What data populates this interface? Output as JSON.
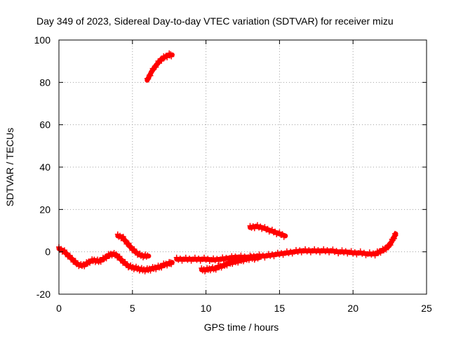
{
  "chart_data": {
    "type": "scatter",
    "title": "Day 349 of 2023, Sidereal Day-to-day VTEC variation (SDTVAR) for receiver mizu",
    "xlabel": "GPS time / hours",
    "ylabel": "SDTVAR / TECUs",
    "xlim": [
      0,
      25
    ],
    "ylim": [
      -20,
      100
    ],
    "xticks": [
      0,
      5,
      10,
      15,
      20,
      25
    ],
    "yticks": [
      -20,
      0,
      20,
      40,
      60,
      80,
      100
    ],
    "grid": true,
    "series_color": "#ff0000",
    "series": [
      {
        "name": "main-trace-a",
        "points": [
          [
            0.0,
            1.5
          ],
          [
            0.3,
            0.5
          ],
          [
            0.6,
            -1.5
          ],
          [
            0.9,
            -3.5
          ],
          [
            1.2,
            -5.5
          ],
          [
            1.5,
            -6.5
          ],
          [
            1.8,
            -6.0
          ],
          [
            2.1,
            -4.5
          ],
          [
            2.4,
            -4.0
          ],
          [
            2.7,
            -4.5
          ],
          [
            3.0,
            -3.5
          ],
          [
            3.3,
            -2.0
          ],
          [
            3.6,
            -1.0
          ],
          [
            3.9,
            -1.5
          ],
          [
            4.2,
            -3.5
          ],
          [
            4.5,
            -5.5
          ],
          [
            4.8,
            -7.0
          ],
          [
            5.1,
            -7.5
          ],
          [
            5.4,
            -8.0
          ],
          [
            5.7,
            -8.5
          ],
          [
            6.0,
            -8.5
          ],
          [
            6.3,
            -8.0
          ],
          [
            6.6,
            -7.5
          ],
          [
            6.9,
            -7.0
          ],
          [
            7.2,
            -6.0
          ],
          [
            7.5,
            -5.5
          ],
          [
            7.7,
            -5.0
          ]
        ]
      },
      {
        "name": "hump-trace",
        "points": [
          [
            4.0,
            7.5
          ],
          [
            4.3,
            7.0
          ],
          [
            4.6,
            4.5
          ],
          [
            4.9,
            2.0
          ],
          [
            5.2,
            0.0
          ],
          [
            5.5,
            -1.5
          ],
          [
            5.8,
            -2.0
          ],
          [
            6.1,
            -2.0
          ]
        ]
      },
      {
        "name": "upper-arc-trace",
        "points": [
          [
            6.0,
            81
          ],
          [
            6.3,
            85
          ],
          [
            6.6,
            88
          ],
          [
            6.9,
            90.5
          ],
          [
            7.2,
            92
          ],
          [
            7.5,
            93
          ],
          [
            7.7,
            93
          ]
        ]
      },
      {
        "name": "main-trace-b",
        "points": [
          [
            8.0,
            -3.5
          ],
          [
            8.5,
            -3.5
          ],
          [
            9.0,
            -3.5
          ],
          [
            9.5,
            -3.5
          ],
          [
            10.0,
            -3.5
          ],
          [
            10.5,
            -3.8
          ],
          [
            11.0,
            -3.5
          ],
          [
            11.5,
            -3.0
          ],
          [
            12.0,
            -2.5
          ],
          [
            12.5,
            -2.5
          ],
          [
            13.0,
            -2.5
          ],
          [
            13.5,
            -2.0
          ],
          [
            14.0,
            -2.0
          ],
          [
            14.5,
            -1.5
          ],
          [
            15.0,
            -1.0
          ],
          [
            15.5,
            -0.5
          ],
          [
            16.0,
            0.0
          ],
          [
            16.5,
            0.5
          ],
          [
            17.0,
            0.5
          ],
          [
            17.5,
            0.5
          ],
          [
            18.0,
            0.5
          ],
          [
            18.5,
            0.5
          ],
          [
            19.0,
            0.0
          ],
          [
            19.5,
            0.0
          ],
          [
            20.0,
            -0.5
          ],
          [
            20.5,
            -0.5
          ],
          [
            21.0,
            -1.0
          ],
          [
            21.5,
            -1.0
          ],
          [
            21.8,
            0.0
          ],
          [
            22.1,
            1.0
          ],
          [
            22.4,
            2.5
          ],
          [
            22.6,
            4.5
          ],
          [
            22.8,
            7.0
          ],
          [
            22.9,
            8.5
          ]
        ]
      },
      {
        "name": "low-trace",
        "points": [
          [
            9.7,
            -8.5
          ],
          [
            10.0,
            -8.5
          ],
          [
            10.3,
            -8.0
          ],
          [
            10.6,
            -8.0
          ],
          [
            10.9,
            -7.0
          ],
          [
            11.2,
            -6.5
          ],
          [
            11.5,
            -5.5
          ],
          [
            11.8,
            -5.0
          ],
          [
            12.1,
            -4.5
          ],
          [
            12.4,
            -4.0
          ],
          [
            12.7,
            -3.5
          ],
          [
            13.0,
            -3.0
          ],
          [
            13.3,
            -3.0
          ],
          [
            13.6,
            -2.8
          ]
        ]
      },
      {
        "name": "mid-hump-trace",
        "points": [
          [
            13.0,
            11.5
          ],
          [
            13.4,
            12.0
          ],
          [
            13.8,
            11.5
          ],
          [
            14.2,
            10.5
          ],
          [
            14.6,
            9.5
          ],
          [
            15.0,
            8.5
          ],
          [
            15.4,
            7.5
          ]
        ]
      }
    ]
  }
}
